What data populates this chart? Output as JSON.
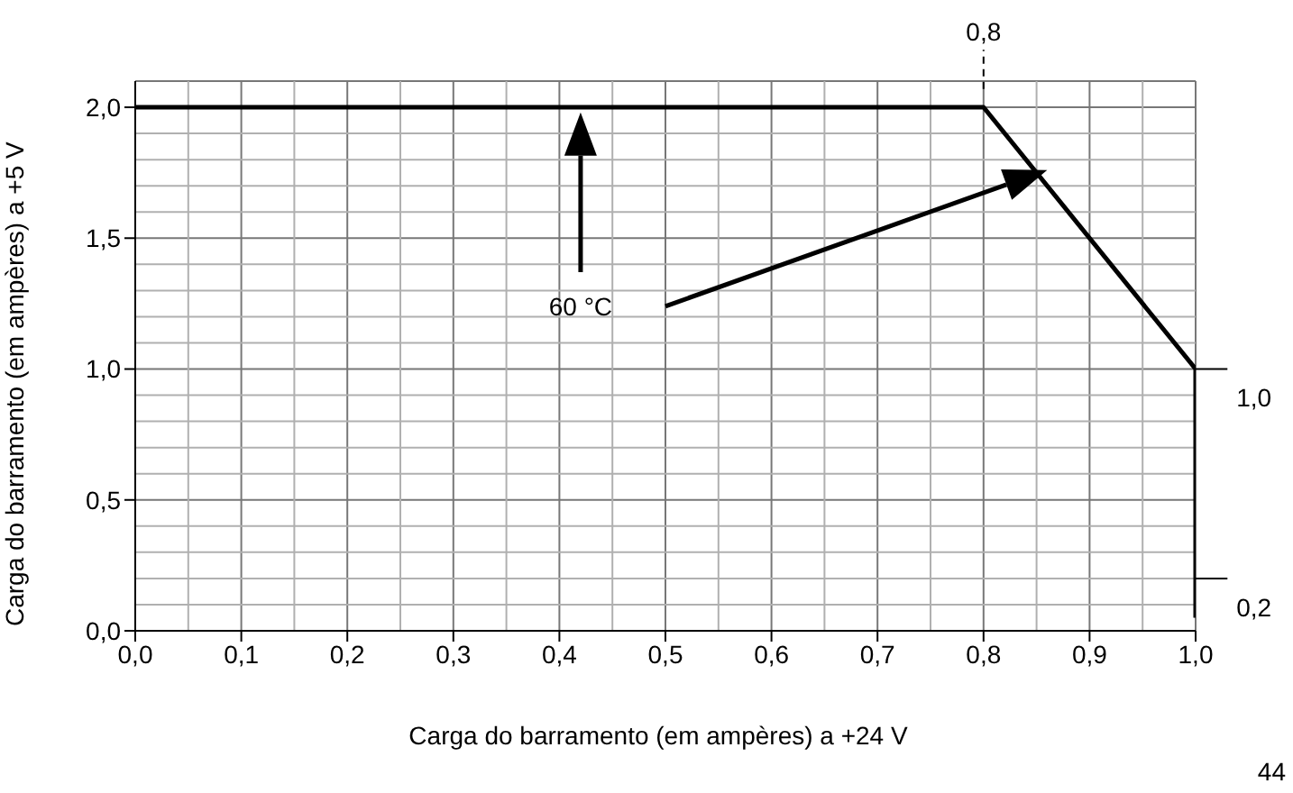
{
  "chart_data": {
    "type": "line",
    "xlabel": "Carga do barramento (em ampères) a +24 V",
    "ylabel": "Carga do barramento (em ampères) a +5 V",
    "x": [
      0,
      0.8,
      1.0,
      1.0
    ],
    "series": [
      {
        "color": "#000000",
        "values": [
          2.0,
          2.0,
          1.0,
          0.05
        ]
      }
    ],
    "xlim": [
      0,
      1.0
    ],
    "xticks": [
      {
        "value": 0,
        "label": "0,0"
      },
      {
        "value": 0.1,
        "label": "0,1"
      },
      {
        "value": 0.2,
        "label": "0,2"
      },
      {
        "value": 0.3,
        "label": "0,3"
      },
      {
        "value": 0.4,
        "label": "0,4"
      },
      {
        "value": 0.5,
        "label": "0,5"
      },
      {
        "value": 0.6,
        "label": "0,6"
      },
      {
        "value": 0.7,
        "label": "0,7"
      },
      {
        "value": 0.8,
        "label": "0,8"
      },
      {
        "value": 0.9,
        "label": "0,9"
      },
      {
        "value": 1.0,
        "label": "1,0"
      }
    ],
    "ylim": [
      0,
      2.1
    ],
    "yticks": [
      {
        "value": 0,
        "label": "0,0"
      },
      {
        "value": 0.5,
        "label": "0,5"
      },
      {
        "value": 1.0,
        "label": "1,0"
      },
      {
        "value": 1.5,
        "label": "1,5"
      },
      {
        "value": 2.0,
        "label": "2,0"
      }
    ],
    "grid": true,
    "marker": "none",
    "line_style": "solid",
    "ref_lines": [
      {
        "axis": "x",
        "value": 0.8,
        "label": "0,8",
        "line_style": "dashed"
      }
    ],
    "annotations": [
      "60 °C",
      {
        "text": "1,0",
        "x": 1.0,
        "y": 1.0
      },
      {
        "text": "0,2",
        "x": 1.0,
        "y": 0.2
      },
      "44"
    ]
  }
}
